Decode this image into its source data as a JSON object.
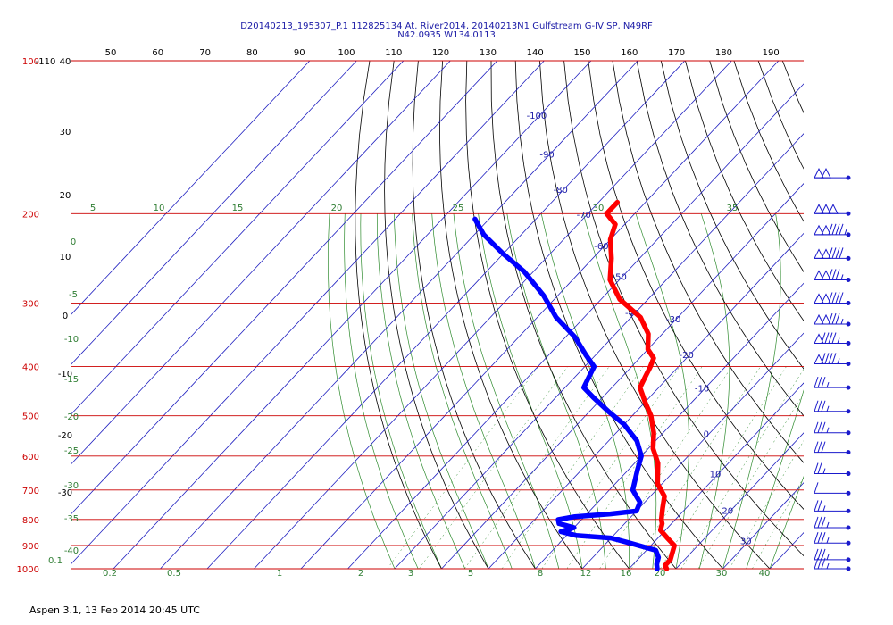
{
  "title_line1": "D20140213_195307_P.1 112825134 At. River2014, 20140213N1 Gulfstream G-IV SP, N49RF",
  "title_line2": "N42.0935 W134.0113",
  "footer": "Aspen 3.1, 13 Feb 2014  20:45 UTC",
  "colors": {
    "temperature": "#ff0000",
    "dewpoint": "#0000ff",
    "isobar": "#cc0000",
    "isotherm": "#2020c0",
    "dry_adiabat": "#000000",
    "moist_adiabat": "#2e8b2e",
    "mixing_ratio": "#2e8b2e",
    "wind_barb": "#1a1acc"
  },
  "chart_data": {
    "type": "skew-t log-p sounding",
    "pressure_axis": {
      "levels": [
        100,
        200,
        300,
        400,
        500,
        600,
        700,
        800,
        900,
        1000
      ],
      "labels": [
        "100",
        "200",
        "300",
        "400",
        "500",
        "600",
        "700",
        "800",
        "900",
        "1000"
      ],
      "unit": "hPa",
      "scale": "log",
      "range": [
        100,
        1000
      ]
    },
    "top_axis": {
      "labels": [
        "50",
        "60",
        "70",
        "80",
        "90",
        "100",
        "110",
        "120",
        "130",
        "140",
        "150",
        "160",
        "170",
        "180",
        "190"
      ]
    },
    "isotherm_labels": [
      {
        "text": "-100",
        "p": 130,
        "T": -100
      },
      {
        "text": "-90",
        "p": 155,
        "T": -90
      },
      {
        "text": "-80",
        "p": 182,
        "T": -80
      },
      {
        "text": "-70",
        "p": 204,
        "T": -70
      },
      {
        "text": "-60",
        "p": 235,
        "T": -60
      },
      {
        "text": "-50",
        "p": 270,
        "T": -50
      },
      {
        "text": "-40",
        "p": 318,
        "T": -40
      },
      {
        "text": "-30",
        "p": 327,
        "T": -30
      },
      {
        "text": "-20",
        "p": 385,
        "T": -20
      },
      {
        "text": "-10",
        "p": 448,
        "T": -10
      },
      {
        "text": "0",
        "p": 550,
        "T": 0
      },
      {
        "text": "10",
        "p": 660,
        "T": 10
      },
      {
        "text": "20",
        "p": 780,
        "T": 20
      },
      {
        "text": "30",
        "p": 895,
        "T": 30
      }
    ],
    "dry_adiabat_labels": [
      "-110",
      "40",
      "30",
      "20",
      "10",
      "0",
      "-10",
      "-20",
      "-30"
    ],
    "moist_adiabat_labels": [
      "5",
      "10",
      "15",
      "20",
      "25",
      "30",
      "35"
    ],
    "moist_left_labels": [
      "0",
      "-5",
      "-10",
      "-15",
      "-20",
      "-25",
      "-30",
      "-35",
      "-40"
    ],
    "mixing_ratio_labels": [
      "0.1",
      "0.2",
      "0.5",
      "1",
      "2",
      "3",
      "5",
      "8",
      "12",
      "16",
      "20",
      "30",
      "40"
    ],
    "temperature_series": {
      "name": "Temperature",
      "points": [
        [
          190,
          -66
        ],
        [
          200,
          -66
        ],
        [
          210,
          -62
        ],
        [
          225,
          -60
        ],
        [
          245,
          -56
        ],
        [
          270,
          -52
        ],
        [
          295,
          -46
        ],
        [
          320,
          -38
        ],
        [
          345,
          -33
        ],
        [
          370,
          -30
        ],
        [
          385,
          -27
        ],
        [
          400,
          -26
        ],
        [
          420,
          -25
        ],
        [
          440,
          -24
        ],
        [
          470,
          -20
        ],
        [
          500,
          -16
        ],
        [
          540,
          -12
        ],
        [
          580,
          -9
        ],
        [
          620,
          -5
        ],
        [
          680,
          -1
        ],
        [
          720,
          3
        ],
        [
          760,
          5
        ],
        [
          800,
          7
        ],
        [
          815,
          8
        ],
        [
          840,
          9
        ],
        [
          870,
          12
        ],
        [
          900,
          15
        ],
        [
          930,
          16
        ],
        [
          960,
          17
        ],
        [
          985,
          17
        ],
        [
          1000,
          18
        ]
      ]
    },
    "dewpoint_series": {
      "name": "Dewpoint",
      "points": [
        [
          205,
          -93
        ],
        [
          220,
          -88
        ],
        [
          240,
          -80
        ],
        [
          260,
          -72
        ],
        [
          290,
          -63
        ],
        [
          320,
          -56
        ],
        [
          350,
          -48
        ],
        [
          380,
          -42
        ],
        [
          400,
          -38
        ],
        [
          420,
          -37
        ],
        [
          440,
          -36
        ],
        [
          460,
          -32
        ],
        [
          490,
          -26
        ],
        [
          520,
          -20
        ],
        [
          560,
          -14
        ],
        [
          600,
          -10
        ],
        [
          640,
          -8
        ],
        [
          700,
          -5
        ],
        [
          740,
          -1
        ],
        [
          770,
          0
        ],
        [
          780,
          -5
        ],
        [
          790,
          -12
        ],
        [
          800,
          -15
        ],
        [
          815,
          -14
        ],
        [
          830,
          -10
        ],
        [
          845,
          -12
        ],
        [
          860,
          -8
        ],
        [
          870,
          0
        ],
        [
          890,
          5
        ],
        [
          920,
          12
        ],
        [
          950,
          14
        ],
        [
          980,
          15
        ],
        [
          1000,
          16
        ]
      ]
    },
    "wind_barbs": [
      {
        "p": 170,
        "speed_kt": 100
      },
      {
        "p": 200,
        "speed_kt": 150
      },
      {
        "p": 220,
        "speed_kt": 145
      },
      {
        "p": 245,
        "speed_kt": 140
      },
      {
        "p": 270,
        "speed_kt": 135
      },
      {
        "p": 300,
        "speed_kt": 140
      },
      {
        "p": 330,
        "speed_kt": 135
      },
      {
        "p": 360,
        "speed_kt": 95
      },
      {
        "p": 395,
        "speed_kt": 95
      },
      {
        "p": 440,
        "speed_kt": 35
      },
      {
        "p": 490,
        "speed_kt": 35
      },
      {
        "p": 540,
        "speed_kt": 35
      },
      {
        "p": 590,
        "speed_kt": 30
      },
      {
        "p": 650,
        "speed_kt": 25
      },
      {
        "p": 710,
        "speed_kt": 10
      },
      {
        "p": 770,
        "speed_kt": 25
      },
      {
        "p": 830,
        "speed_kt": 35
      },
      {
        "p": 890,
        "speed_kt": 35
      },
      {
        "p": 960,
        "speed_kt": 35
      },
      {
        "p": 1000,
        "speed_kt": 35
      }
    ]
  }
}
